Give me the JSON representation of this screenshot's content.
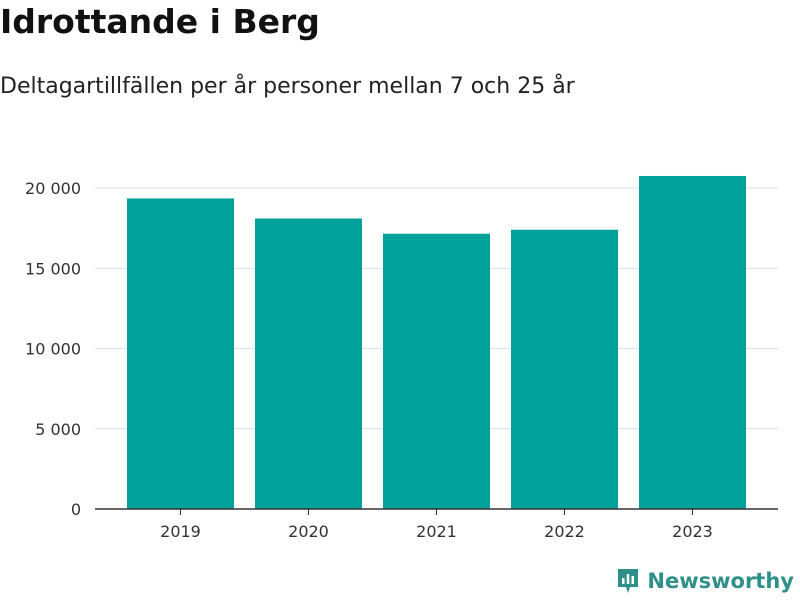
{
  "header": {
    "title": "Idrottande i Berg",
    "subtitle": "Deltagartillfällen per år personer mellan 7 och 25 år"
  },
  "brand": {
    "name": "Newsworthy",
    "icon": "newsworthy-logo-icon",
    "color": "#2f8f89"
  },
  "colors": {
    "bar": "#00a29a",
    "grid": "#dddddd",
    "axis": "#333333"
  },
  "chart_data": {
    "type": "bar",
    "title": "Idrottande i Berg",
    "subtitle": "Deltagartillfällen per år personer mellan 7 och 25 år",
    "categories": [
      "2019",
      "2020",
      "2021",
      "2022",
      "2023"
    ],
    "values": [
      19350,
      18100,
      17150,
      17400,
      20750
    ],
    "ylim": [
      0,
      20000
    ],
    "yticks": [
      0,
      5000,
      10000,
      15000,
      20000
    ],
    "ytick_labels": [
      "0",
      "5 000",
      "10 000",
      "15 000",
      "20 000"
    ],
    "xlabel": "",
    "ylabel": "",
    "grid": true,
    "legend": "none"
  }
}
